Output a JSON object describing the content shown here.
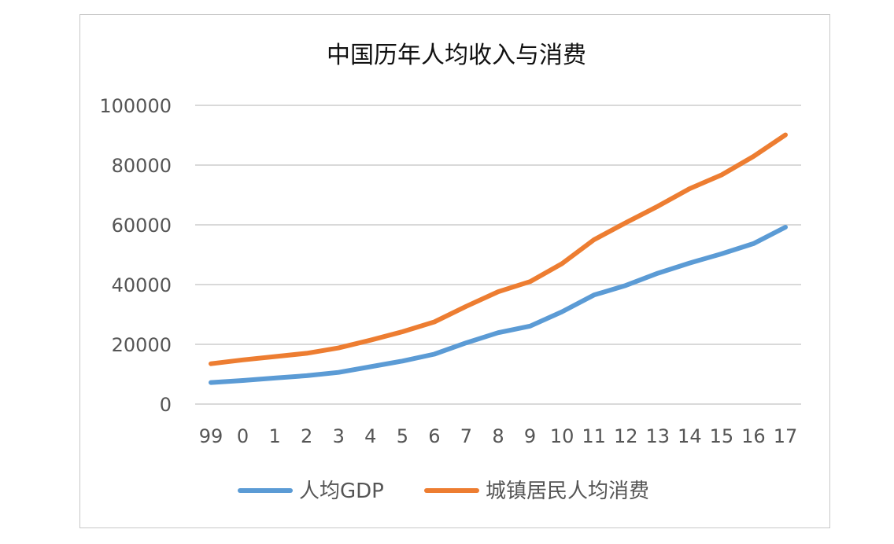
{
  "chart_data": {
    "type": "line",
    "title": "中国历年人均收入与消费",
    "xlabel": "",
    "ylabel": "",
    "categories": [
      "99",
      "0",
      "1",
      "2",
      "3",
      "4",
      "5",
      "6",
      "7",
      "8",
      "9",
      "10",
      "11",
      "12",
      "13",
      "14",
      "15",
      "16",
      "17"
    ],
    "ylim": [
      0,
      100000
    ],
    "yticks": [
      0,
      20000,
      40000,
      60000,
      80000,
      100000
    ],
    "ytick_labels": [
      "0",
      "20000",
      "40000",
      "60000",
      "80000",
      "100000"
    ],
    "grid": "horizontal",
    "legend_position": "bottom",
    "series": [
      {
        "name": "人均GDP",
        "color": "#5b9bd5",
        "values": [
          7200,
          7900,
          8700,
          9500,
          10600,
          12500,
          14400,
          16700,
          20500,
          23900,
          26100,
          30900,
          36500,
          39700,
          43800,
          47200,
          50300,
          53700,
          59200
        ]
      },
      {
        "name": "城镇居民人均消费",
        "color": "#ed7d31",
        "values": [
          13500,
          14800,
          15900,
          17000,
          18800,
          21400,
          24200,
          27500,
          32700,
          37600,
          41000,
          47000,
          55000,
          60700,
          66200,
          72100,
          76700,
          82900,
          90100
        ]
      }
    ]
  }
}
